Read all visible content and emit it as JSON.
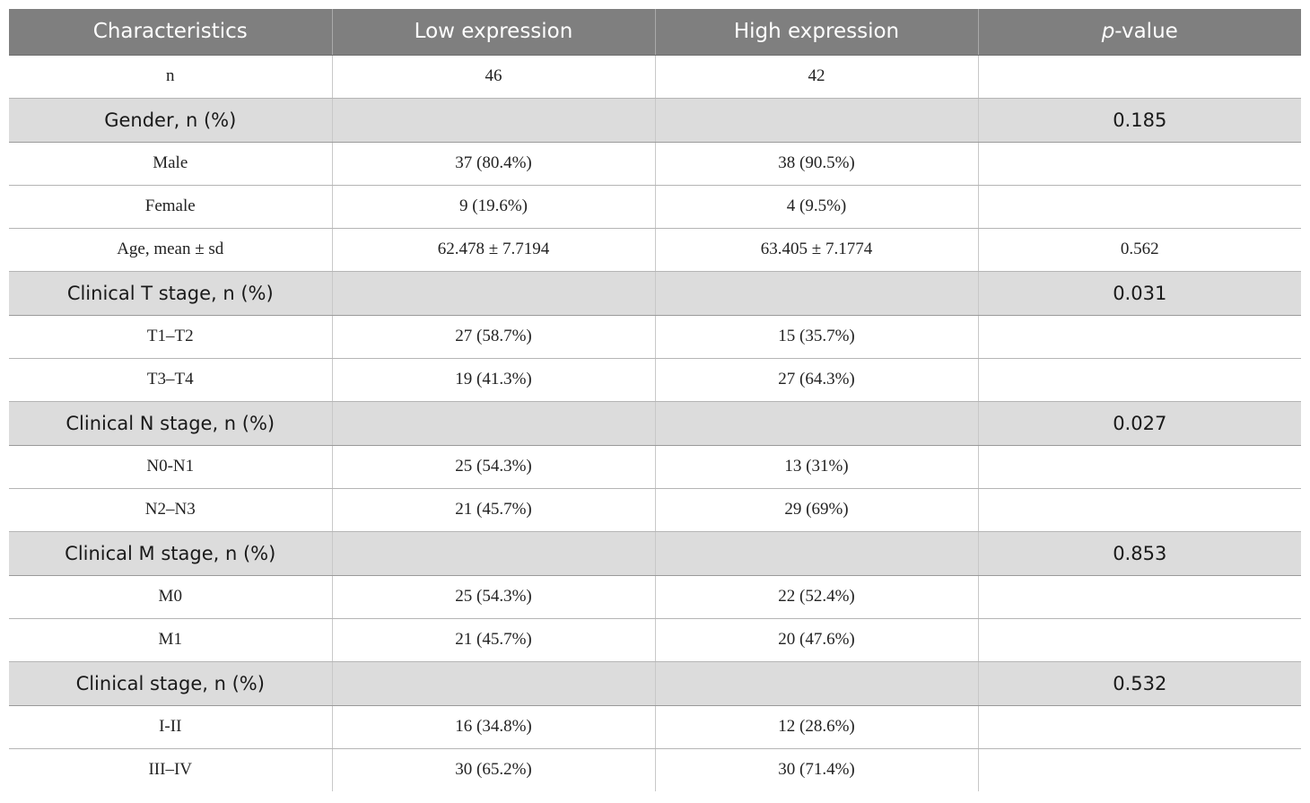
{
  "table": {
    "headers": {
      "characteristics": "Characteristics",
      "low": "Low expression",
      "high": "High expression",
      "pvalue_p": "p",
      "pvalue_rest": "-value"
    },
    "rows": [
      {
        "type": "row",
        "label": "n",
        "low": "46",
        "high": "42",
        "p": ""
      },
      {
        "type": "group",
        "label": "Gender, n (%)",
        "low": "",
        "high": "",
        "p": "0.185"
      },
      {
        "type": "row",
        "label": "Male",
        "low": "37 (80.4%)",
        "high": "38 (90.5%)",
        "p": ""
      },
      {
        "type": "row",
        "label": "Female",
        "low": "9 (19.6%)",
        "high": "4 (9.5%)",
        "p": ""
      },
      {
        "type": "row",
        "label": "Age, mean ± sd",
        "low": "62.478 ± 7.7194",
        "high": "63.405 ± 7.1774",
        "p": "0.562"
      },
      {
        "type": "group",
        "label": "Clinical T stage, n (%)",
        "low": "",
        "high": "",
        "p": "0.031"
      },
      {
        "type": "row",
        "label": "T1–T2",
        "low": "27 (58.7%)",
        "high": "15 (35.7%)",
        "p": ""
      },
      {
        "type": "row",
        "label": "T3–T4",
        "low": "19 (41.3%)",
        "high": "27 (64.3%)",
        "p": ""
      },
      {
        "type": "group",
        "label": "Clinical N stage, n (%)",
        "low": "",
        "high": "",
        "p": "0.027"
      },
      {
        "type": "row",
        "label": "N0-N1",
        "low": "25 (54.3%)",
        "high": "13 (31%)",
        "p": ""
      },
      {
        "type": "row",
        "label": "N2–N3",
        "low": "21 (45.7%)",
        "high": "29 (69%)",
        "p": ""
      },
      {
        "type": "group",
        "label": "Clinical M stage, n (%)",
        "low": "",
        "high": "",
        "p": "0.853"
      },
      {
        "type": "row",
        "label": "M0",
        "low": "25 (54.3%)",
        "high": "22 (52.4%)",
        "p": ""
      },
      {
        "type": "row",
        "label": "M1",
        "low": "21 (45.7%)",
        "high": "20 (47.6%)",
        "p": ""
      },
      {
        "type": "group",
        "label": "Clinical stage, n (%)",
        "low": "",
        "high": "",
        "p": "0.532"
      },
      {
        "type": "row",
        "label": "I-II",
        "low": "16 (34.8%)",
        "high": "12 (28.6%)",
        "p": ""
      },
      {
        "type": "row",
        "label": "III–IV",
        "low": "30 (65.2%)",
        "high": "30 (71.4%)",
        "p": ""
      }
    ]
  }
}
